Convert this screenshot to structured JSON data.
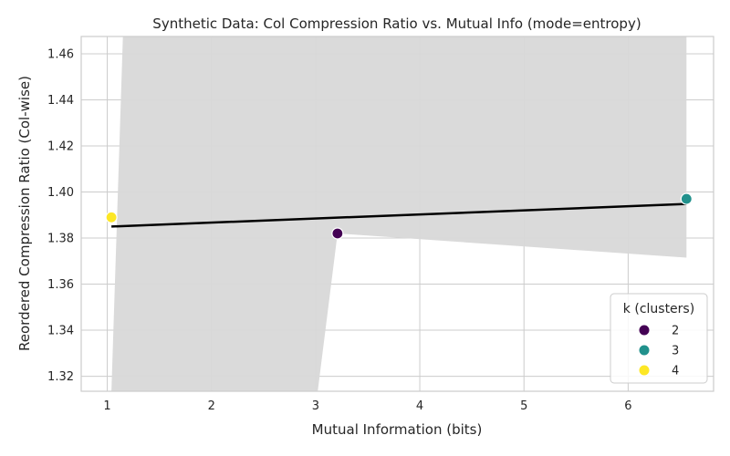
{
  "chart_data": {
    "type": "scatter",
    "title": "Synthetic Data: Col Compression Ratio vs. Mutual Info (mode=entropy)",
    "xlabel": "Mutual Information (bits)",
    "ylabel": "Reordered Compression Ratio (Col-wise)",
    "xlim": [
      0.75,
      6.82
    ],
    "ylim": [
      1.3135,
      1.4675
    ],
    "xticks": [
      1,
      2,
      3,
      4,
      5,
      6
    ],
    "yticks": [
      1.32,
      1.34,
      1.36,
      1.38,
      1.4,
      1.42,
      1.44,
      1.46
    ],
    "ytick_labels": [
      "1.32",
      "1.34",
      "1.36",
      "1.38",
      "1.40",
      "1.42",
      "1.44",
      "1.46"
    ],
    "grid": true,
    "points": [
      {
        "x": 1.04,
        "y": 1.389,
        "k": 4,
        "color": "#fde725"
      },
      {
        "x": 3.21,
        "y": 1.382,
        "k": 2,
        "color": "#440154"
      },
      {
        "x": 6.56,
        "y": 1.397,
        "k": 3,
        "color": "#21918c"
      }
    ],
    "regression": {
      "color": "#000000",
      "x": [
        1.04,
        6.56
      ],
      "y": [
        1.385,
        1.3948
      ]
    },
    "confidence_band": {
      "color": "#d8d8d8",
      "x": [
        1.04,
        1.15,
        3.02,
        3.21,
        6.56
      ],
      "upper": [
        1.3135,
        1.4675,
        1.4675,
        1.4675,
        1.4675
      ],
      "lower": [
        1.3135,
        1.3135,
        1.3135,
        1.382,
        1.3715
      ]
    },
    "legend": {
      "title": "k (clusters)",
      "position": "bottom-right",
      "entries": [
        {
          "label": "2",
          "color": "#440154"
        },
        {
          "label": "3",
          "color": "#21918c"
        },
        {
          "label": "4",
          "color": "#fde725"
        }
      ]
    }
  }
}
